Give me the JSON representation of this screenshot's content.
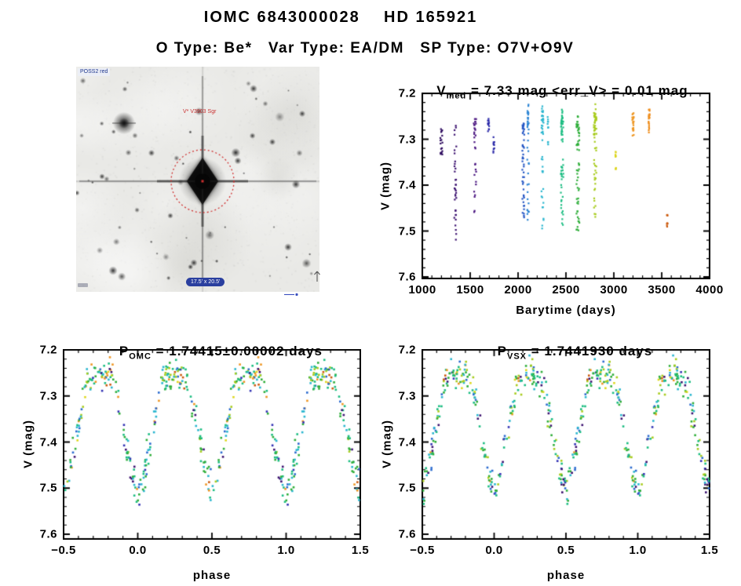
{
  "page": {
    "bg": "#ffffff",
    "title": "IOMC 6843000028    HD 165921",
    "subtitle": "O Type: Be*   Var Type: EA/DM   SP Type: O7V+O9V"
  },
  "finder": {
    "survey_label": "POSS2 red",
    "star_label": "V* V3903 Sgr",
    "size_label": "17.5' x 20.5'",
    "circle_color": "#d03030"
  },
  "phase_palette": [
    {
      "color": "#3c1270",
      "w": 1.0,
      "max_v": 7.6
    },
    {
      "color": "#3232b4",
      "w": 0.7,
      "max_v": 7.6
    },
    {
      "color": "#2b6bcf",
      "w": 1.0,
      "max_v": 7.6
    },
    {
      "color": "#2ab6cf",
      "w": 1.8,
      "max_v": 7.6
    },
    {
      "color": "#1cbd82",
      "w": 3.0,
      "max_v": 7.6
    },
    {
      "color": "#2fae3a",
      "w": 2.6,
      "max_v": 7.6
    },
    {
      "color": "#a8cc1e",
      "w": 2.0,
      "max_v": 7.5
    },
    {
      "color": "#ddd81e",
      "w": 0.7,
      "max_v": 7.4,
      "dim_above": 7.33
    },
    {
      "color": "#ee9622",
      "w": 1.1,
      "max_v": 7.52,
      "dim_above": 7.36
    },
    {
      "color": "#cc5c10",
      "w": 0.3,
      "max_v": 7.52
    }
  ],
  "chart_data": [
    {
      "id": "timeseries",
      "type": "scatter",
      "title_pre": "V",
      "title_sub": "med",
      "title_rest": " = 7.33 mag <err_V> = 0.01 mag",
      "xlabel": "Barytime (days)",
      "ylabel": "V (mag)",
      "xlim": [
        1000,
        4000
      ],
      "ylim": [
        7.2,
        7.6
      ],
      "y_inverted": true,
      "grid": false,
      "x_ticks": [
        1000,
        1500,
        2000,
        2500,
        3000,
        3500,
        4000
      ],
      "x_tick_labels": [
        "1000",
        "1500",
        "2000",
        "2500",
        "3000",
        "3500",
        "4000"
      ],
      "y_ticks": [
        7.2,
        7.3,
        7.4,
        7.5,
        7.6
      ],
      "y_tick_labels": [
        "7.2",
        "7.3",
        "7.4",
        "7.5",
        "7.6"
      ],
      "x_minor_step": 100,
      "y_minor_step": 0.02,
      "seed": 11,
      "clusters": [
        {
          "t": 1200,
          "dt": 25,
          "vmin": 7.275,
          "vmax": 7.335,
          "n": 18,
          "color": "#2d0a5e"
        },
        {
          "t": 1345,
          "dt": 22,
          "vmin": 7.27,
          "vmax": 7.52,
          "n": 34,
          "color": "#3c1270"
        },
        {
          "t": 1550,
          "dt": 25,
          "vmin": 7.255,
          "vmax": 7.485,
          "n": 30,
          "color": "#4a1580"
        },
        {
          "t": 1690,
          "dt": 18,
          "vmin": 7.255,
          "vmax": 7.29,
          "n": 14,
          "color": "#2a28a8"
        },
        {
          "t": 1748,
          "dt": 14,
          "vmin": 7.295,
          "vmax": 7.33,
          "n": 10,
          "color": "#2a28a8"
        },
        {
          "t": 2055,
          "dt": 22,
          "vmin": 7.265,
          "vmax": 7.475,
          "n": 48,
          "color": "#2456c4"
        },
        {
          "t": 2105,
          "dt": 18,
          "vmin": 7.195,
          "vmax": 7.48,
          "n": 40,
          "color": "#2e86d4"
        },
        {
          "t": 2255,
          "dt": 22,
          "vmin": 7.225,
          "vmax": 7.5,
          "n": 42,
          "color": "#2ab6cf"
        },
        {
          "t": 2312,
          "dt": 12,
          "vmin": 7.235,
          "vmax": 7.315,
          "n": 10,
          "color": "#2ab6cf"
        },
        {
          "t": 2460,
          "dt": 26,
          "vmin": 7.23,
          "vmax": 7.49,
          "n": 60,
          "color": "#1cbd82"
        },
        {
          "t": 2625,
          "dt": 30,
          "vmin": 7.245,
          "vmax": 7.5,
          "n": 60,
          "color": "#2fae3a"
        },
        {
          "t": 2805,
          "dt": 28,
          "vmin": 7.215,
          "vmax": 7.47,
          "n": 62,
          "color": "#a8cc1e"
        },
        {
          "t": 3022,
          "dt": 12,
          "vmin": 7.325,
          "vmax": 7.365,
          "n": 9,
          "color": "#dcd41c"
        },
        {
          "t": 3200,
          "dt": 16,
          "vmin": 7.235,
          "vmax": 7.305,
          "n": 24,
          "color": "#ee9622"
        },
        {
          "t": 3368,
          "dt": 14,
          "vmin": 7.235,
          "vmax": 7.3,
          "n": 20,
          "color": "#ee8c1a"
        },
        {
          "t": 3558,
          "dt": 8,
          "vmin": 7.462,
          "vmax": 7.5,
          "n": 8,
          "color": "#cc5c10"
        }
      ]
    },
    {
      "id": "phase_omc",
      "type": "scatter",
      "title_pre": "P",
      "title_sub": "OMC",
      "title_rest": " = 1.74415±0.00002 days",
      "xlabel": "phase",
      "ylabel": "V (mag)",
      "xlim": [
        -0.5,
        1.5
      ],
      "ylim": [
        7.2,
        7.6
      ],
      "y_inverted": true,
      "grid": false,
      "x_ticks": [
        -0.5,
        0.0,
        0.5,
        1.0,
        1.5
      ],
      "x_tick_labels": [
        "−0.5",
        "0.0",
        "0.5",
        "1.0",
        "1.5"
      ],
      "y_ticks": [
        7.2,
        7.3,
        7.4,
        7.5,
        7.6
      ],
      "y_tick_labels": [
        "7.2",
        "7.3",
        "7.4",
        "7.5",
        "7.6"
      ],
      "x_minor_step": 0.1,
      "y_minor_step": 0.02,
      "seed": 7,
      "model": {
        "v_base": 7.272,
        "ell_amp": 0.02,
        "noise": 0.017,
        "n_points": 265,
        "eclipses": [
          {
            "phase": 0.0,
            "depth": 0.225,
            "width": 0.16
          },
          {
            "phase": 0.5,
            "depth": 0.215,
            "width": 0.16
          }
        ]
      }
    },
    {
      "id": "phase_vsx",
      "type": "scatter",
      "title_pre": "P",
      "title_sub": "VSX",
      "title_rest": " = 1.7441930 days",
      "xlabel": "phase",
      "ylabel": "V (mag)",
      "xlim": [
        -0.5,
        1.5
      ],
      "ylim": [
        7.2,
        7.6
      ],
      "y_inverted": true,
      "grid": false,
      "x_ticks": [
        -0.5,
        0.0,
        0.5,
        1.0,
        1.5
      ],
      "x_tick_labels": [
        "−0.5",
        "0.0",
        "0.5",
        "1.0",
        "1.5"
      ],
      "y_ticks": [
        7.2,
        7.3,
        7.4,
        7.5,
        7.6
      ],
      "y_tick_labels": [
        "7.2",
        "7.3",
        "7.4",
        "7.5",
        "7.6"
      ],
      "x_minor_step": 0.1,
      "y_minor_step": 0.02,
      "seed": 13,
      "model": {
        "v_base": 7.272,
        "ell_amp": 0.02,
        "noise": 0.017,
        "n_points": 265,
        "eclipses": [
          {
            "phase": 0.0,
            "depth": 0.225,
            "width": 0.16
          },
          {
            "phase": 0.5,
            "depth": 0.215,
            "width": 0.16
          }
        ]
      }
    }
  ]
}
